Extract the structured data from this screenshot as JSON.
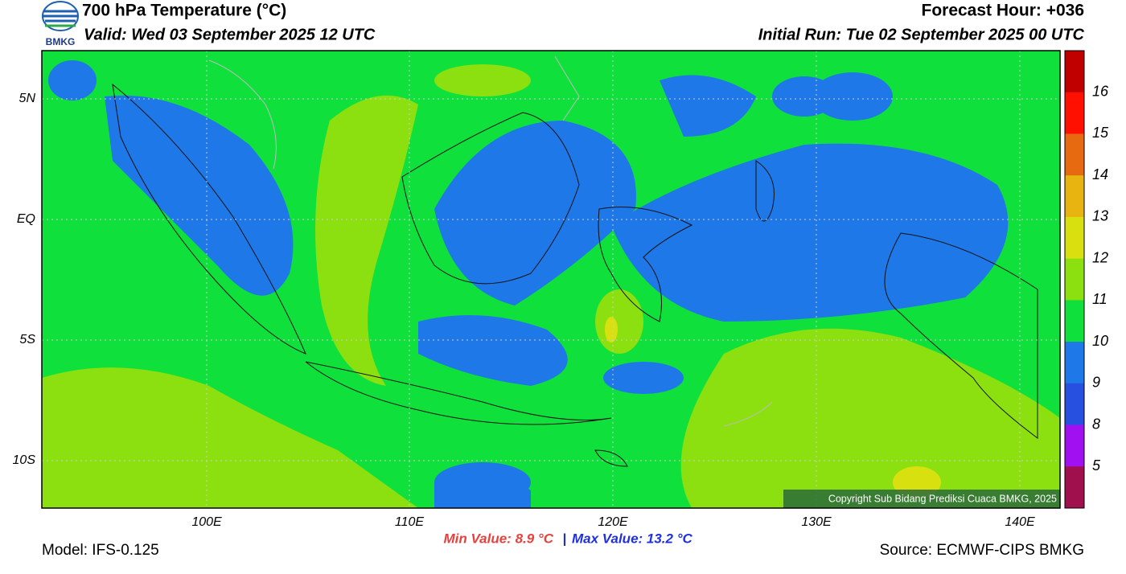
{
  "header": {
    "title": "700 hPa Temperature (°C)",
    "valid": "Valid: Wed 03 September 2025 12 UTC",
    "forecast_hour": "Forecast Hour: +036",
    "initial_run": "Initial Run: Tue 02 September 2025 00 UTC",
    "logo_text": "BMKG"
  },
  "map": {
    "lat_labels": [
      "5N",
      "EQ",
      "5S",
      "10S"
    ],
    "lon_labels": [
      "100E",
      "110E",
      "120E",
      "130E",
      "140E"
    ],
    "copyright": "Copyright Sub Bidang Prediksi Cuaca BMKG, 2025"
  },
  "colorbar": {
    "labels": [
      "16",
      "15",
      "14",
      "13",
      "12",
      "11",
      "10",
      "9",
      "8",
      "5"
    ]
  },
  "footer": {
    "model": "Model: IFS-0.125",
    "min_value": "Min Value: 8.9 °C",
    "separator": "|",
    "max_value": "Max Value: 13.2 °C",
    "source": "Source: ECMWF-CIPS BMKG"
  }
}
